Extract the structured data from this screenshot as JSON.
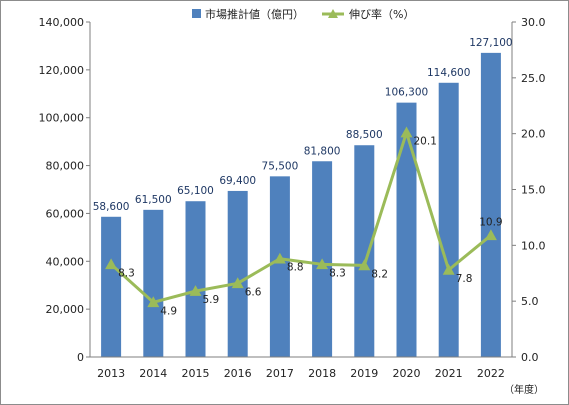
{
  "chart_data": {
    "type": "bar",
    "categories": [
      "2013",
      "2014",
      "2015",
      "2016",
      "2017",
      "2018",
      "2019",
      "2020",
      "2021",
      "2022"
    ],
    "series": [
      {
        "name": "市場推計値（億円）",
        "type": "bar",
        "axis": "left",
        "color": "#4f81bd",
        "values": [
          58600,
          61500,
          65100,
          69400,
          75500,
          81800,
          88500,
          106300,
          114600,
          127100
        ],
        "labels": [
          "58,600",
          "61,500",
          "65,100",
          "69,400",
          "75,500",
          "81,800",
          "88,500",
          "106,300",
          "114,600",
          "127,100"
        ]
      },
      {
        "name": "伸び率（%）",
        "type": "line",
        "axis": "right",
        "color": "#9bbb59",
        "marker": "triangle",
        "values": [
          8.3,
          4.9,
          5.9,
          6.6,
          8.8,
          8.3,
          8.2,
          20.1,
          7.8,
          10.9
        ],
        "labels": [
          "8.3",
          "4.9",
          "5.9",
          "6.6",
          "8.8",
          "8.3",
          "8.2",
          "20.1",
          "7.8",
          "10.9"
        ]
      }
    ],
    "xunit": "（年度）",
    "ylim": [
      0,
      140000
    ],
    "y2lim": [
      0,
      30
    ],
    "yticks": [
      "0",
      "20,000",
      "40,000",
      "60,000",
      "80,000",
      "100,000",
      "120,000",
      "140,000"
    ],
    "y2ticks": [
      "0.0",
      "5.0",
      "10.0",
      "15.0",
      "20.0",
      "25.0",
      "30.0"
    ],
    "grid": false,
    "legend": "top-center"
  }
}
